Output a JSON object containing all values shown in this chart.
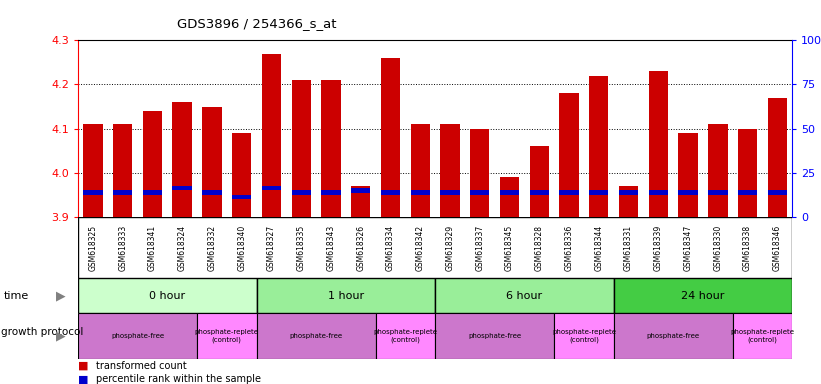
{
  "title": "GDS3896 / 254366_s_at",
  "samples": [
    "GSM618325",
    "GSM618333",
    "GSM618341",
    "GSM618324",
    "GSM618332",
    "GSM618340",
    "GSM618327",
    "GSM618335",
    "GSM618343",
    "GSM618326",
    "GSM618334",
    "GSM618342",
    "GSM618329",
    "GSM618337",
    "GSM618345",
    "GSM618328",
    "GSM618336",
    "GSM618344",
    "GSM618331",
    "GSM618339",
    "GSM618347",
    "GSM618330",
    "GSM618338",
    "GSM618346"
  ],
  "transformed_count": [
    4.11,
    4.11,
    4.14,
    4.16,
    4.15,
    4.09,
    4.27,
    4.21,
    4.21,
    3.97,
    4.26,
    4.11,
    4.11,
    4.1,
    3.99,
    4.06,
    4.18,
    4.22,
    3.97,
    4.23,
    4.09,
    4.11,
    4.1,
    4.17
  ],
  "percentile_rank": [
    3.955,
    3.955,
    3.955,
    3.965,
    3.955,
    3.945,
    3.965,
    3.955,
    3.955,
    3.96,
    3.955,
    3.955,
    3.955,
    3.955,
    3.955,
    3.955,
    3.955,
    3.955,
    3.955,
    3.955,
    3.955,
    3.955,
    3.955,
    3.955
  ],
  "base_value": 3.9,
  "ylim": [
    3.9,
    4.3
  ],
  "yticks": [
    3.9,
    4.0,
    4.1,
    4.2,
    4.3
  ],
  "bar_color": "#cc0000",
  "percentile_color": "#0000cc",
  "sample_bg": "#c8c8c8",
  "time_data": [
    {
      "label": "0 hour",
      "start": 0,
      "end": 6,
      "color": "#ccffcc"
    },
    {
      "label": "1 hour",
      "start": 6,
      "end": 12,
      "color": "#99ee99"
    },
    {
      "label": "6 hour",
      "start": 12,
      "end": 18,
      "color": "#99ee99"
    },
    {
      "label": "24 hour",
      "start": 18,
      "end": 24,
      "color": "#44cc44"
    }
  ],
  "protocol_data": [
    {
      "label": "phosphate-free",
      "start": 0,
      "end": 4,
      "color": "#cc77cc"
    },
    {
      "label": "phosphate-replete\n(control)",
      "start": 4,
      "end": 6,
      "color": "#ff88ff"
    },
    {
      "label": "phosphate-free",
      "start": 6,
      "end": 10,
      "color": "#cc77cc"
    },
    {
      "label": "phosphate-replete\n(control)",
      "start": 10,
      "end": 12,
      "color": "#ff88ff"
    },
    {
      "label": "phosphate-free",
      "start": 12,
      "end": 16,
      "color": "#cc77cc"
    },
    {
      "label": "phosphate-replete\n(control)",
      "start": 16,
      "end": 18,
      "color": "#ff88ff"
    },
    {
      "label": "phosphate-free",
      "start": 18,
      "end": 22,
      "color": "#cc77cc"
    },
    {
      "label": "phosphate-replete\n(control)",
      "start": 22,
      "end": 24,
      "color": "#ff88ff"
    }
  ]
}
